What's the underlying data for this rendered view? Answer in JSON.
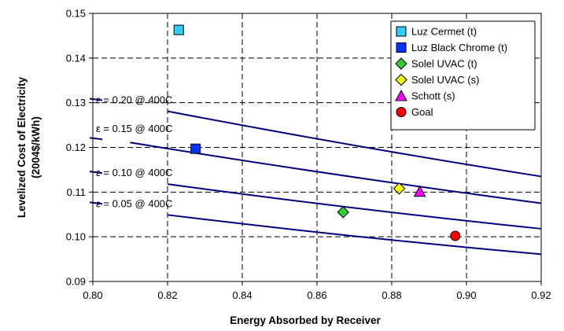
{
  "chart_data": {
    "type": "line",
    "xlabel": "Energy Absorbed by Receiver",
    "ylabel": "Levelized Cost of Electricity",
    "ylabel_units": "(2004$/kWh)",
    "xlim": [
      0.8,
      0.92
    ],
    "ylim": [
      0.09,
      0.15
    ],
    "x_ticks": [
      "0.80",
      "0.82",
      "0.84",
      "0.86",
      "0.88",
      "0.90",
      "0.92"
    ],
    "y_ticks": [
      "0.09",
      "0.10",
      "0.11",
      "0.12",
      "0.13",
      "0.14",
      "0.15"
    ],
    "grid": true,
    "legend_position": "top-right",
    "series": [
      {
        "name": "ε = 0.20 @ 400C",
        "kind": "curve",
        "color": "#000080",
        "x": [
          0.82,
          0.92
        ],
        "y": [
          0.1281,
          0.1135
        ]
      },
      {
        "name": "ε = 0.15 @ 400C",
        "kind": "curve",
        "color": "#000080",
        "x": [
          0.81,
          0.92
        ],
        "y": [
          0.1211,
          0.1075
        ]
      },
      {
        "name": "ε = 0.10 @ 400C",
        "kind": "curve",
        "color": "#000080",
        "x": [
          0.82,
          0.92
        ],
        "y": [
          0.1118,
          0.1018
        ]
      },
      {
        "name": "ε = 0.05 @ 400C",
        "kind": "curve",
        "color": "#000080",
        "x": [
          0.82,
          0.92
        ],
        "y": [
          0.1049,
          0.0961
        ]
      }
    ],
    "points": [
      {
        "name": "Luz Cermet (t)",
        "x": 0.823,
        "y": 0.1463,
        "marker": "square",
        "color": "#33CCFF"
      },
      {
        "name": "Luz Black Chrome (t)",
        "x": 0.8275,
        "y": 0.1197,
        "marker": "square",
        "color": "#0033FF"
      },
      {
        "name": "Solel UVAC (t)",
        "x": 0.867,
        "y": 0.1055,
        "marker": "diamond",
        "color": "#33CC33"
      },
      {
        "name": "Solel UVAC (s)",
        "x": 0.882,
        "y": 0.1108,
        "marker": "diamond",
        "color": "#FFFF00"
      },
      {
        "name": "Schott (s)",
        "x": 0.8875,
        "y": 0.1101,
        "marker": "triangle",
        "color": "#FF00FF"
      },
      {
        "name": "Goal",
        "x": 0.897,
        "y": 0.1002,
        "marker": "circle",
        "color": "#FF0000"
      }
    ]
  }
}
